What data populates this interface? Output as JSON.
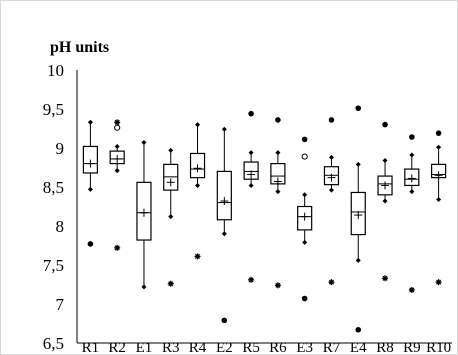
{
  "chart_data": {
    "type": "box",
    "ylabel": "pH units",
    "yticks": [
      "10",
      "9,5",
      "9",
      "8,5",
      "8",
      "7,5",
      "7",
      "6,5"
    ],
    "ylim": [
      6.5,
      10
    ],
    "grid": false,
    "legend": "none",
    "categories": [
      "R1",
      "R2",
      "E1",
      "R3",
      "R4",
      "E2",
      "R5",
      "R6",
      "E3",
      "R7",
      "E4",
      "R8",
      "R9",
      "R10"
    ],
    "boxes": [
      {
        "name": "R1",
        "whisker_low": 8.47,
        "q1": 8.68,
        "median": 8.8,
        "q3": 9.02,
        "whisker_high": 9.33,
        "mean": 8.8,
        "max_marker": null,
        "max_marker_type": null,
        "min_marker": 7.77,
        "min_marker_type": "dot"
      },
      {
        "name": "R2",
        "whisker_low": 8.71,
        "q1": 8.8,
        "median": 8.86,
        "q3": 8.96,
        "whisker_high": 9.02,
        "mean": 8.86,
        "outliers": [
          9.26
        ],
        "max_marker": 9.33,
        "max_marker_type": "star",
        "min_marker": 7.72,
        "min_marker_type": "star"
      },
      {
        "name": "E1",
        "whisker_low": 7.22,
        "q1": 7.82,
        "median": 8.17,
        "q3": 8.56,
        "whisker_high": 9.07,
        "mean": 8.17,
        "max_marker": null,
        "max_marker_type": null,
        "min_marker": null,
        "min_marker_type": null
      },
      {
        "name": "R3",
        "whisker_low": 8.12,
        "q1": 8.46,
        "median": 8.63,
        "q3": 8.79,
        "whisker_high": 8.97,
        "mean": 8.56,
        "max_marker": null,
        "max_marker_type": null,
        "min_marker": 7.26,
        "min_marker_type": "star"
      },
      {
        "name": "R4",
        "whisker_low": 8.52,
        "q1": 8.62,
        "median": 8.73,
        "q3": 8.93,
        "whisker_high": 9.3,
        "mean": 8.74,
        "max_marker": null,
        "max_marker_type": null,
        "min_marker": 7.61,
        "min_marker_type": "star"
      },
      {
        "name": "E2",
        "whisker_low": 7.9,
        "q1": 8.08,
        "median": 8.3,
        "q3": 8.7,
        "whisker_high": 9.24,
        "mean": 8.32,
        "max_marker": null,
        "max_marker_type": null,
        "min_marker": 6.79,
        "min_marker_type": "dot"
      },
      {
        "name": "R5",
        "whisker_low": 8.52,
        "q1": 8.6,
        "median": 8.7,
        "q3": 8.82,
        "whisker_high": 8.94,
        "mean": 8.66,
        "max_marker": 9.44,
        "max_marker_type": "dot",
        "min_marker": 7.31,
        "min_marker_type": "star"
      },
      {
        "name": "R6",
        "whisker_low": 8.44,
        "q1": 8.54,
        "median": 8.64,
        "q3": 8.8,
        "whisker_high": 8.94,
        "mean": 8.57,
        "max_marker": 9.36,
        "max_marker_type": "dot",
        "min_marker": 7.24,
        "min_marker_type": "star"
      },
      {
        "name": "E3",
        "whisker_low": 7.79,
        "q1": 7.95,
        "median": 8.12,
        "q3": 8.25,
        "whisker_high": 8.4,
        "mean": 8.12,
        "outliers": [
          8.89
        ],
        "max_marker": 9.11,
        "max_marker_type": "dot",
        "min_marker": 7.07,
        "min_marker_type": "dot"
      },
      {
        "name": "R7",
        "whisker_low": 8.46,
        "q1": 8.53,
        "median": 8.65,
        "q3": 8.76,
        "whisker_high": 8.88,
        "mean": 8.62,
        "max_marker": 9.36,
        "max_marker_type": "dot",
        "min_marker": 7.28,
        "min_marker_type": "star"
      },
      {
        "name": "E4",
        "whisker_low": 7.56,
        "q1": 7.89,
        "median": 8.18,
        "q3": 8.43,
        "whisker_high": 8.79,
        "mean": 8.14,
        "max_marker": 9.51,
        "max_marker_type": "dot",
        "min_marker": 6.67,
        "min_marker_type": "dot"
      },
      {
        "name": "R8",
        "whisker_low": 8.32,
        "q1": 8.4,
        "median": 8.54,
        "q3": 8.64,
        "whisker_high": 8.84,
        "mean": 8.52,
        "max_marker": 9.3,
        "max_marker_type": "dot",
        "min_marker": 7.33,
        "min_marker_type": "star"
      },
      {
        "name": "R9",
        "whisker_low": 8.44,
        "q1": 8.52,
        "median": 8.6,
        "q3": 8.73,
        "whisker_high": 8.91,
        "mean": 8.61,
        "max_marker": 9.14,
        "max_marker_type": "dot",
        "min_marker": 7.18,
        "min_marker_type": "star"
      },
      {
        "name": "R10",
        "whisker_low": 8.34,
        "q1": 8.62,
        "median": 8.66,
        "q3": 8.79,
        "whisker_high": 9.01,
        "mean": 8.65,
        "max_marker": 9.19,
        "max_marker_type": "dot",
        "min_marker": 7.28,
        "min_marker_type": "star"
      }
    ]
  }
}
